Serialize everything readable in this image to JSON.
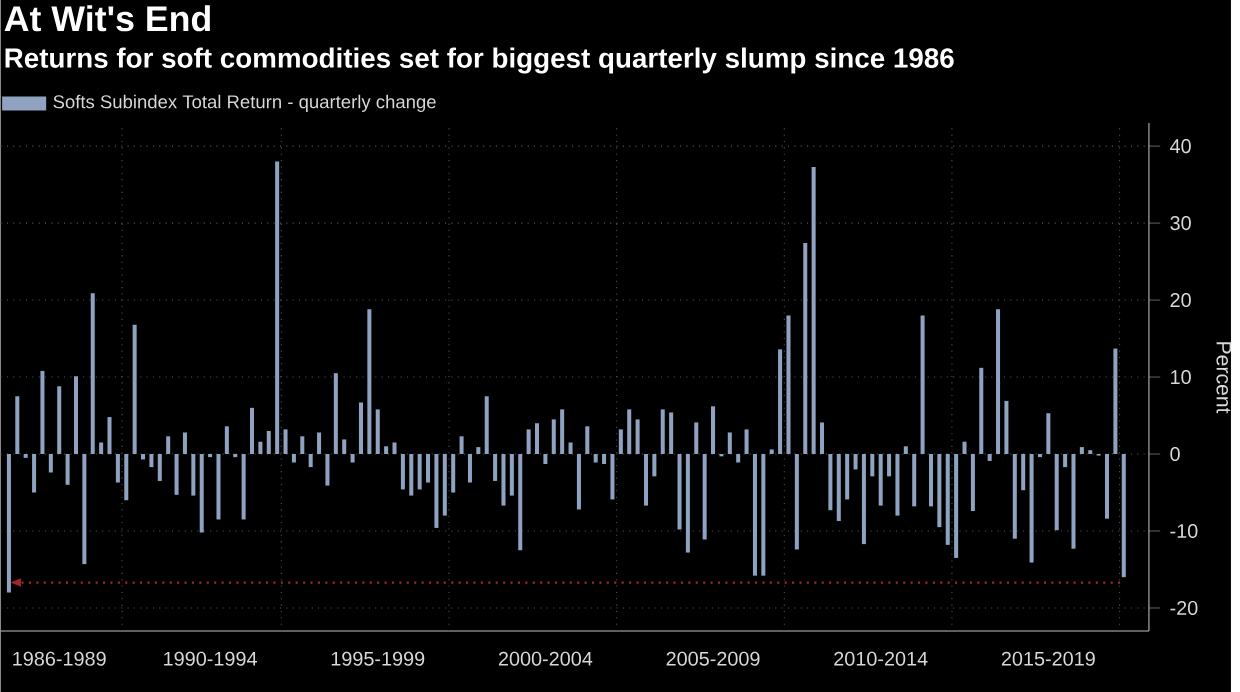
{
  "chart_data": {
    "type": "bar",
    "title": "At Wit's End",
    "subtitle": "Returns for soft commodities set for biggest quarterly slump since 1986",
    "ylabel": "Percent",
    "categories": [
      null,
      null,
      null,
      null,
      null,
      null,
      "1986-1989",
      null,
      null,
      null,
      null,
      null,
      null,
      null,
      null,
      null,
      null,
      null,
      null,
      null,
      null,
      null,
      null,
      null,
      "1990-1994",
      null,
      null,
      null,
      null,
      null,
      null,
      null,
      null,
      null,
      null,
      null,
      null,
      null,
      null,
      null,
      null,
      null,
      null,
      null,
      "1995-1999",
      null,
      null,
      null,
      null,
      null,
      null,
      null,
      null,
      null,
      null,
      null,
      null,
      null,
      null,
      null,
      null,
      null,
      null,
      null,
      "2000-2004",
      null,
      null,
      null,
      null,
      null,
      null,
      null,
      null,
      null,
      null,
      null,
      null,
      null,
      null,
      null,
      null,
      null,
      null,
      null,
      "2005-2009",
      null,
      null,
      null,
      null,
      null,
      null,
      null,
      null,
      null,
      null,
      null,
      null,
      null,
      null,
      null,
      null,
      null,
      null,
      null,
      "2010-2014",
      null,
      null,
      null,
      null,
      null,
      null,
      null,
      null,
      null,
      null,
      null,
      null,
      null,
      null,
      null,
      null,
      null,
      null,
      null,
      "2015-2019",
      null,
      null,
      null,
      null,
      null,
      null,
      null,
      null,
      null
    ],
    "series": [
      {
        "name": "Softs Subindex Total Return - quarterly change",
        "color": "#8fa3c0",
        "values": [
          -18,
          7.5,
          -0.5,
          -5,
          10.8,
          -2.4,
          8.8,
          -4,
          10.1,
          -14.3,
          20.9,
          1.5,
          4.8,
          -3.7,
          -6,
          16.8,
          -0.7,
          -1.7,
          -3.5,
          2.3,
          -5.3,
          2.8,
          -5.4,
          -10.2,
          -0.4,
          -8.5,
          3.6,
          -0.4,
          -8.5,
          6,
          1.6,
          3,
          38,
          3.2,
          -1.1,
          2.3,
          -1.7,
          2.8,
          -4.1,
          10.5,
          1.9,
          -1.1,
          6.7,
          18.8,
          5.8,
          1,
          1.5,
          -4.6,
          -5.4,
          -4.6,
          -3.7,
          -9.6,
          -8,
          -5,
          2.3,
          -3.7,
          0.9,
          7.5,
          -3.5,
          -6.7,
          -5.4,
          -12.5,
          3.2,
          4,
          -1.3,
          4.5,
          5.8,
          1.5,
          -7.2,
          3.6,
          -1.1,
          -1.3,
          -5.9,
          3.2,
          5.8,
          4.5,
          -6.7,
          -2.9,
          5.8,
          5.4,
          -9.8,
          -12.8,
          4.1,
          -11.1,
          6.2,
          -0.3,
          2.8,
          -1.1,
          3.2,
          -15.8,
          -15.8,
          0.6,
          13.6,
          18,
          -12.4,
          27.4,
          37.3,
          4.1,
          -7.3,
          -8.7,
          -5.9,
          -2,
          -11.7,
          -2.9,
          -6.7,
          -2.9,
          -8,
          1,
          -6.8,
          18,
          -6.8,
          -9.5,
          -11.8,
          -13.5,
          1.6,
          -7.4,
          11.2,
          -0.9,
          18.8,
          6.9,
          -11,
          -4.7,
          -14.1,
          -0.4,
          5.3,
          -9.9,
          -1.7,
          -12.3,
          0.9,
          0.5,
          -0.2,
          -8.4,
          13.7,
          -16
        ]
      }
    ],
    "ylim": [
      -23,
      43
    ],
    "yticks": [
      -20,
      -10,
      0,
      10,
      20,
      30,
      40
    ],
    "ref_lines": [
      {
        "axis": "y",
        "value": -16.7,
        "color": "#a02828",
        "line_style": "dotted"
      }
    ],
    "grid": true,
    "legend": "top left"
  }
}
